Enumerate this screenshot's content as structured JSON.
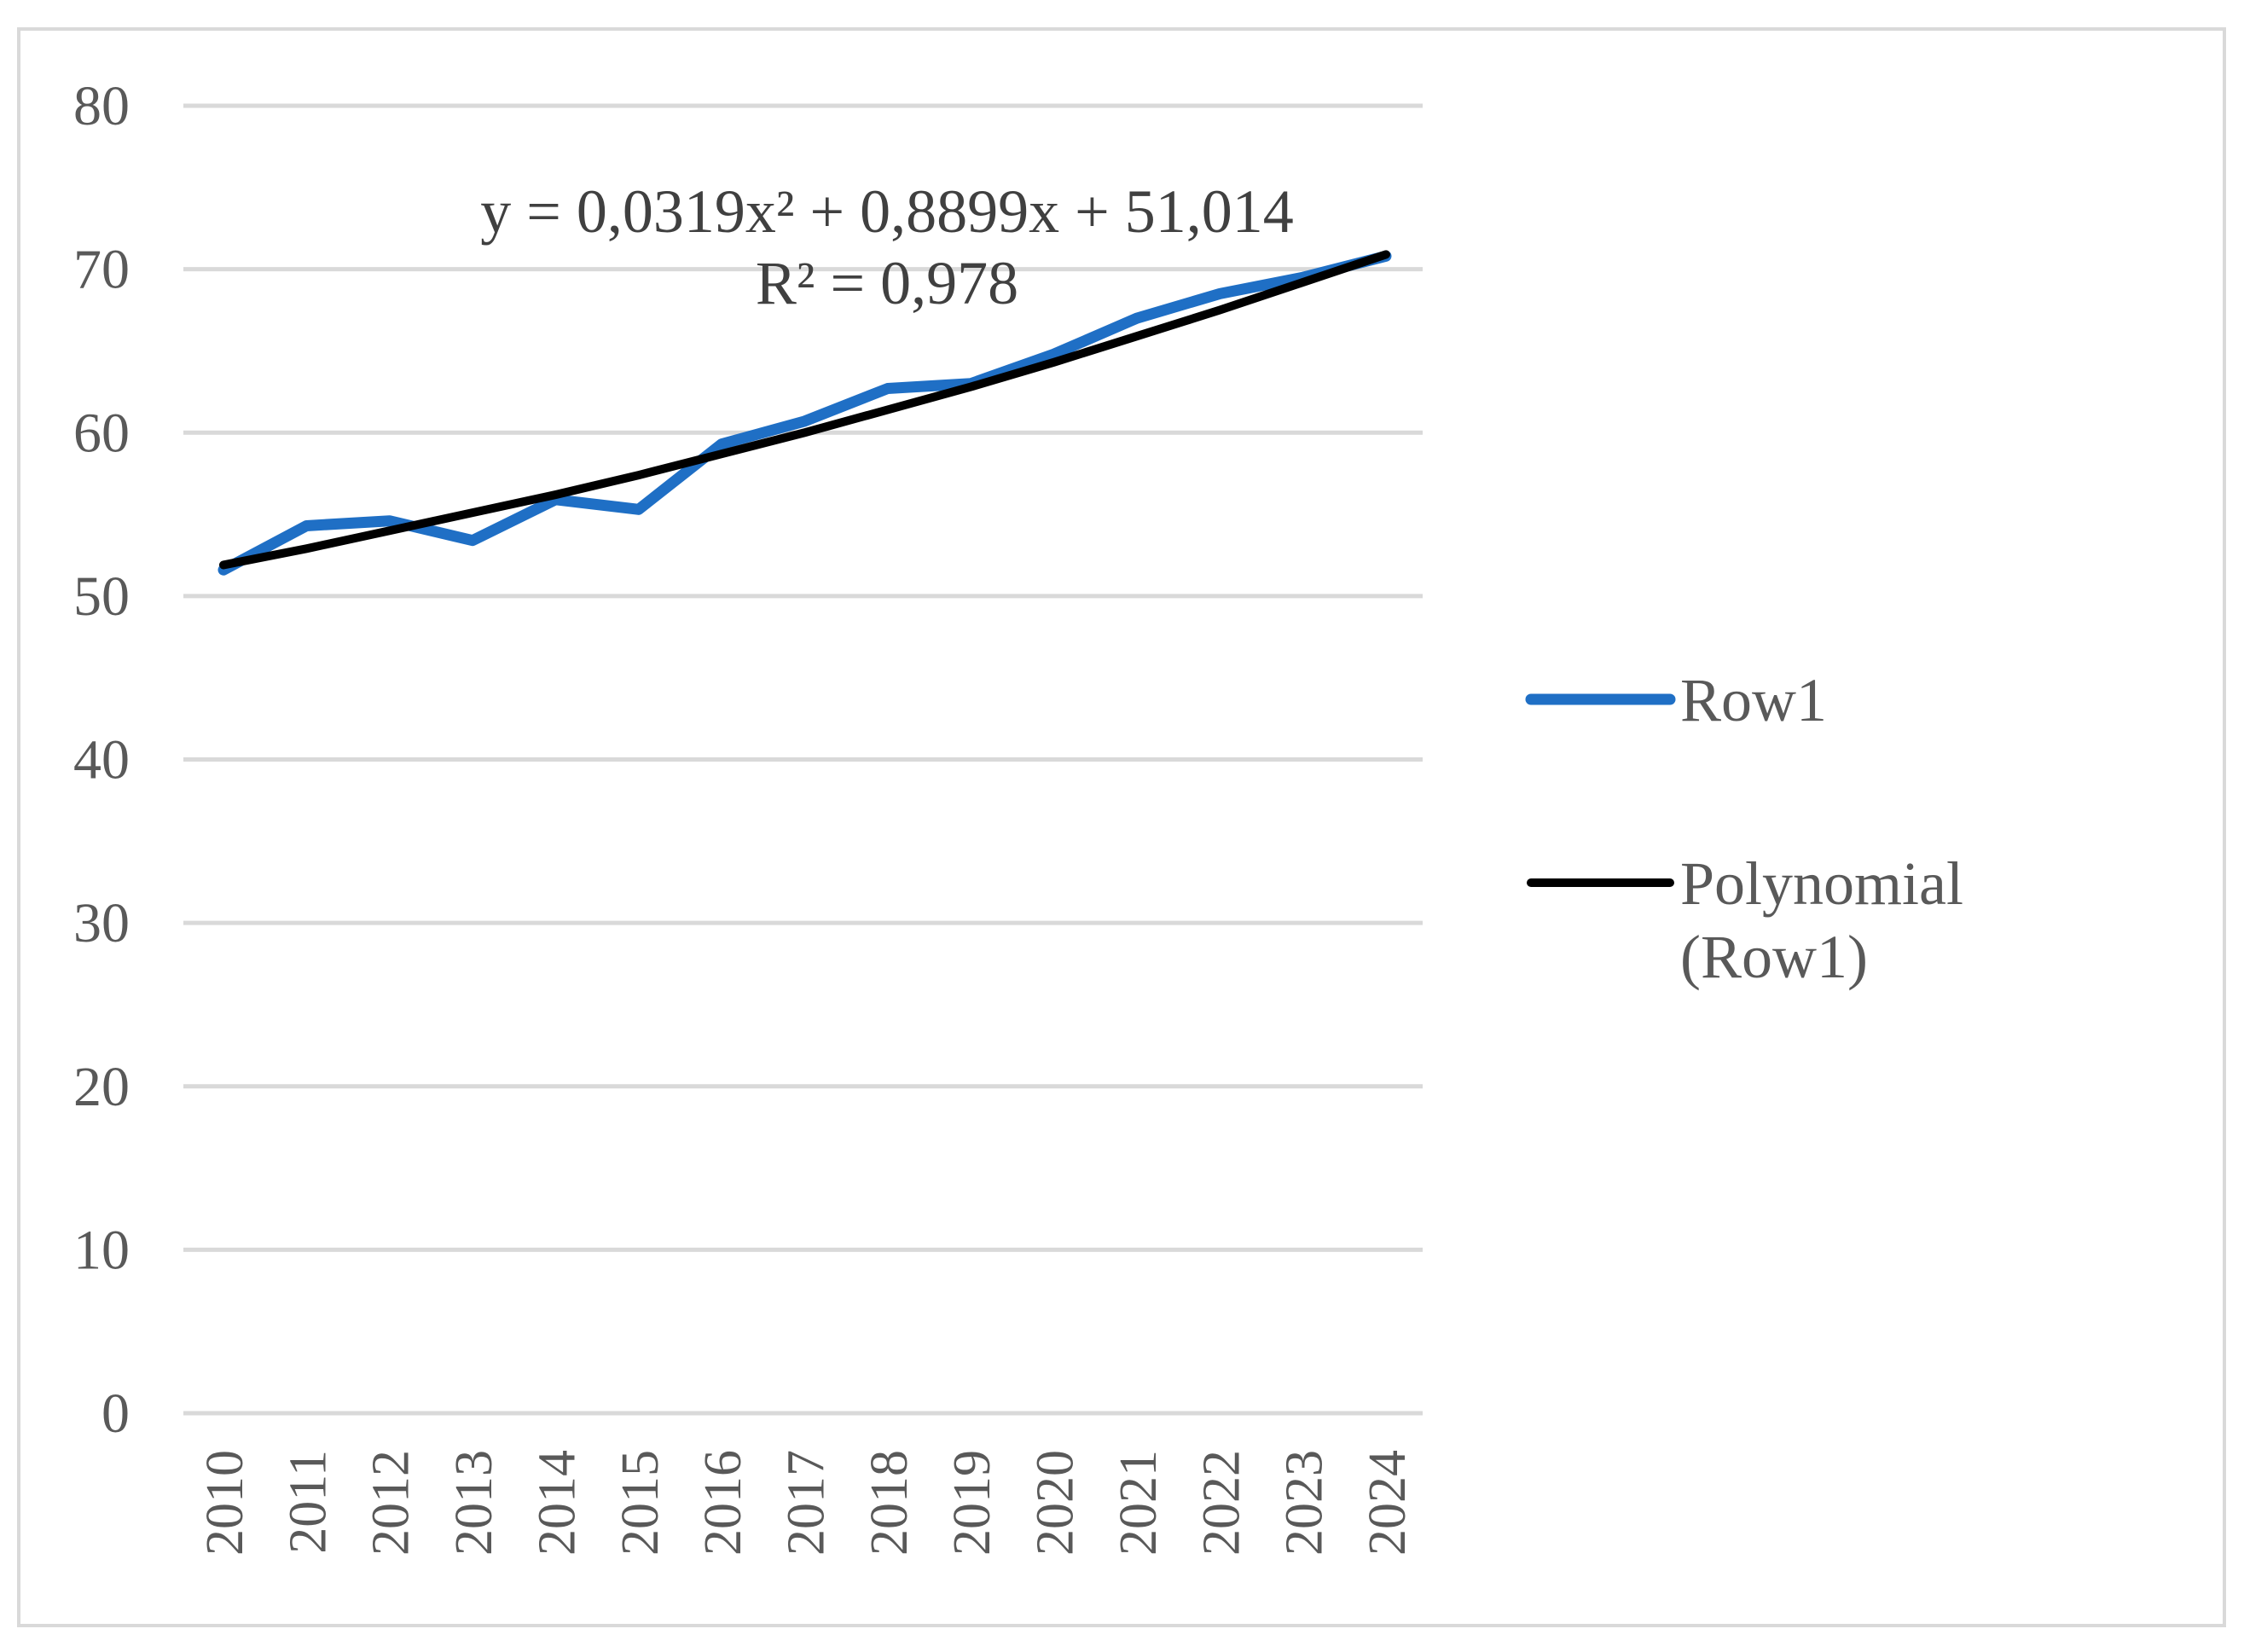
{
  "chart_data": {
    "type": "line",
    "categories": [
      "2010",
      "2011",
      "2012",
      "2013",
      "2014",
      "2015",
      "2016",
      "2017",
      "2018",
      "2019",
      "2020",
      "2021",
      "2022",
      "2023",
      "2024"
    ],
    "series": [
      {
        "name": "Row1",
        "color": "#1f6fc5",
        "values": [
          51.6,
          54.3,
          54.6,
          53.4,
          55.9,
          55.3,
          59.3,
          60.7,
          62.7,
          63.0,
          64.8,
          67.0,
          68.5,
          69.5,
          70.8
        ]
      },
      {
        "name": "Polynomial (Row1)",
        "color": "#000000",
        "values": [
          51.9,
          52.9,
          54.0,
          55.1,
          56.2,
          57.4,
          58.7,
          60.0,
          61.4,
          62.8,
          64.3,
          65.9,
          67.5,
          69.2,
          70.9
        ]
      }
    ],
    "ylim": [
      0,
      80
    ],
    "yticks": [
      0,
      10,
      20,
      30,
      40,
      50,
      60,
      70,
      80
    ],
    "grid": true,
    "legend_position": "right",
    "trendline_equation": "y = 0,0319x² + 0,8899x + 51,014",
    "trendline_r2": "R² = 0,978",
    "title": "",
    "xlabel": "",
    "ylabel": ""
  }
}
